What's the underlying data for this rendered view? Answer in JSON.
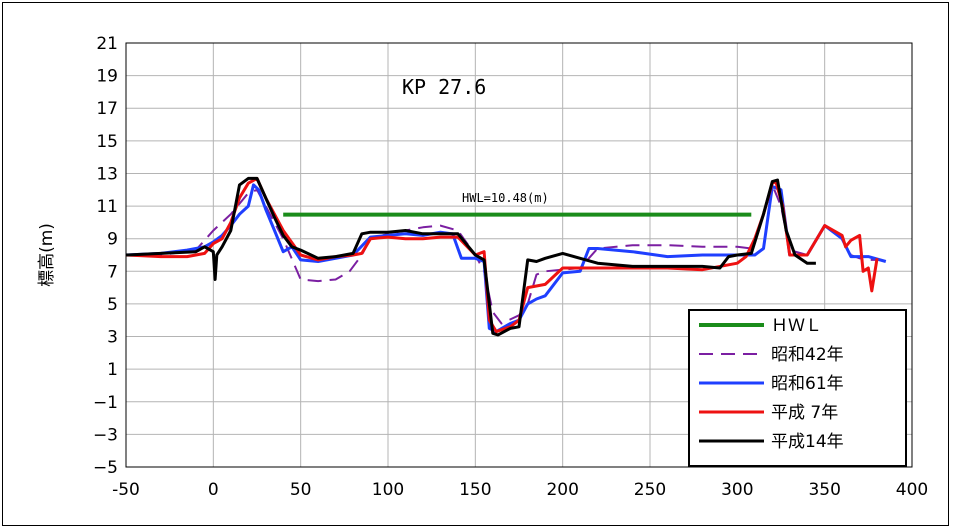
{
  "chart_data": {
    "type": "line",
    "title": "",
    "annotation": "KP 27.6",
    "hwl_annotation": "HWL=10.48(m)",
    "xlabel": "",
    "ylabel": "標高(m)",
    "xlim": [
      -50,
      400
    ],
    "ylim": [
      -5,
      21
    ],
    "xticks": [
      "-50",
      "0",
      "50",
      "100",
      "150",
      "200",
      "250",
      "300",
      "350",
      "400"
    ],
    "yticks": [
      "21",
      "19",
      "17",
      "15",
      "13",
      "11",
      "9",
      "7",
      "5",
      "3",
      "1",
      "−1",
      "−3",
      "−5"
    ],
    "grid": true,
    "legend_position": "bottom-right",
    "series": [
      {
        "name": "ＨＷＬ",
        "color": "#1a8c1a",
        "style": "solid",
        "x": [
          40,
          308
        ],
        "y": [
          10.48,
          10.48
        ]
      },
      {
        "name": "昭和42年",
        "color": "#7b1fa2",
        "style": "dashed",
        "x": [
          -50,
          -30,
          -10,
          0,
          10,
          20,
          25,
          30,
          40,
          50,
          60,
          70,
          78,
          85,
          90,
          100,
          110,
          120,
          130,
          140,
          150,
          155,
          160,
          165,
          175,
          180,
          185,
          190,
          200,
          210,
          220,
          240,
          260,
          280,
          300,
          308,
          315,
          320,
          325,
          330,
          340,
          350,
          360,
          365,
          370,
          375,
          380
        ],
        "y": [
          8.0,
          8.0,
          8.3,
          9.5,
          10.5,
          11.8,
          12.0,
          11.0,
          9.0,
          6.5,
          6.4,
          6.5,
          7.0,
          8.0,
          9.0,
          9.3,
          9.5,
          9.7,
          9.8,
          9.5,
          8.0,
          7.0,
          4.5,
          3.8,
          4.3,
          5.0,
          6.8,
          7.0,
          7.1,
          7.2,
          8.4,
          8.6,
          8.6,
          8.5,
          8.5,
          8.4,
          10.5,
          12.3,
          11.0,
          8.3,
          8.0,
          9.8,
          9.0,
          8.0,
          7.8,
          7.7,
          7.7
        ]
      },
      {
        "name": "昭和61年",
        "color": "#1f3fff",
        "style": "solid",
        "x": [
          -50,
          -30,
          -15,
          -5,
          0,
          5,
          10,
          15,
          20,
          23,
          26,
          30,
          35,
          40,
          45,
          50,
          60,
          70,
          80,
          90,
          100,
          110,
          120,
          130,
          137,
          142,
          150,
          155,
          158,
          162,
          170,
          175,
          180,
          185,
          190,
          200,
          210,
          215,
          220,
          240,
          260,
          280,
          300,
          305,
          310,
          315,
          320,
          325,
          330,
          335,
          340,
          350,
          360,
          365,
          375,
          385
        ],
        "y": [
          8.0,
          8.1,
          8.3,
          8.5,
          8.8,
          9.2,
          9.8,
          10.5,
          11.0,
          12.3,
          12.0,
          10.8,
          9.5,
          8.2,
          8.5,
          7.7,
          7.6,
          7.8,
          8.0,
          9.1,
          9.2,
          9.3,
          9.2,
          9.4,
          9.3,
          7.8,
          7.8,
          7.6,
          3.5,
          3.3,
          3.8,
          4.0,
          5.0,
          5.3,
          5.5,
          6.9,
          7.0,
          8.4,
          8.4,
          8.2,
          7.9,
          8.0,
          8.0,
          8.0,
          8.0,
          8.4,
          12.2,
          12.0,
          8.0,
          8.0,
          8.0,
          9.8,
          9.0,
          7.9,
          7.9,
          7.6
        ]
      },
      {
        "name": "平成 7年",
        "color": "#ee1111",
        "style": "solid",
        "x": [
          -50,
          -30,
          -15,
          -5,
          0,
          5,
          10,
          15,
          20,
          25,
          30,
          40,
          50,
          60,
          70,
          80,
          85,
          90,
          100,
          110,
          120,
          130,
          140,
          150,
          155,
          158,
          162,
          170,
          175,
          180,
          190,
          200,
          220,
          240,
          260,
          280,
          300,
          305,
          310,
          315,
          320,
          322,
          326,
          330,
          340,
          350,
          360,
          362,
          365,
          370,
          372,
          375,
          377,
          380
        ],
        "y": [
          8.0,
          7.9,
          7.9,
          8.1,
          8.7,
          9.0,
          10.0,
          11.5,
          12.4,
          12.7,
          11.5,
          9.5,
          8.0,
          7.7,
          7.9,
          8.0,
          8.1,
          9.0,
          9.1,
          9.0,
          9.0,
          9.1,
          9.1,
          8.0,
          8.2,
          4.0,
          3.3,
          3.6,
          4.0,
          6.0,
          6.2,
          7.2,
          7.2,
          7.2,
          7.2,
          7.1,
          7.5,
          7.9,
          9.0,
          10.5,
          12.4,
          12.5,
          11.0,
          8.0,
          8.0,
          9.8,
          9.2,
          8.5,
          8.9,
          9.2,
          7.0,
          7.2,
          5.8,
          7.8
        ]
      },
      {
        "name": "平成14年",
        "color": "#000000",
        "style": "solid",
        "x": [
          -50,
          -30,
          -10,
          -5,
          0,
          1,
          2,
          5,
          10,
          15,
          20,
          25,
          30,
          35,
          40,
          45,
          50,
          60,
          70,
          80,
          85,
          90,
          100,
          110,
          120,
          130,
          140,
          150,
          155,
          160,
          163,
          170,
          175,
          180,
          185,
          190,
          200,
          210,
          220,
          240,
          260,
          280,
          290,
          295,
          300,
          308,
          315,
          320,
          323,
          328,
          333,
          340,
          345
        ],
        "y": [
          8.0,
          8.1,
          8.2,
          8.5,
          8.2,
          6.5,
          8.0,
          8.5,
          9.5,
          12.3,
          12.7,
          12.7,
          11.5,
          10.3,
          9.2,
          8.5,
          8.3,
          7.8,
          7.9,
          8.1,
          9.3,
          9.4,
          9.4,
          9.5,
          9.3,
          9.3,
          9.3,
          8.0,
          7.7,
          3.2,
          3.1,
          3.5,
          3.6,
          7.7,
          7.6,
          7.8,
          8.1,
          7.8,
          7.5,
          7.3,
          7.3,
          7.3,
          7.2,
          7.9,
          8.0,
          8.1,
          10.5,
          12.5,
          12.6,
          9.5,
          8.0,
          7.5,
          7.5
        ]
      }
    ]
  }
}
